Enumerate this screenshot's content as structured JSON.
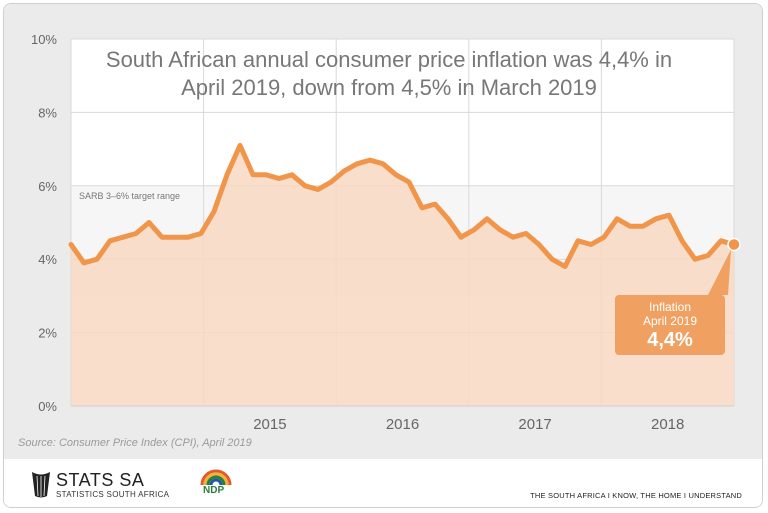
{
  "chart_data": {
    "type": "area",
    "title": "South African annual consumer price inflation was 4,4% in April 2019, down from 4,5% in March 2019",
    "ylim": [
      0,
      10
    ],
    "y_ticks": [
      "0%",
      "2%",
      "4%",
      "6%",
      "8%",
      "10%"
    ],
    "x_tick_labels": [
      "2015",
      "2016",
      "2017",
      "2018"
    ],
    "band": {
      "label": "SARB 3–6% target range",
      "from": 3,
      "to": 6
    },
    "grid": true,
    "series": [
      {
        "values": [
          4.4,
          3.9,
          4.0,
          4.5,
          4.6,
          4.7,
          5.0,
          4.6,
          4.6,
          4.6,
          4.7,
          5.3,
          6.3,
          7.1,
          6.3,
          6.3,
          6.2,
          6.3,
          6.0,
          5.9,
          6.1,
          6.4,
          6.6,
          6.7,
          6.6,
          6.3,
          6.1,
          5.4,
          5.5,
          5.1,
          4.6,
          4.8,
          5.1,
          4.8,
          4.6,
          4.7,
          4.4,
          4.0,
          3.8,
          4.5,
          4.4,
          4.6,
          5.1,
          4.9,
          4.9,
          5.1,
          5.2,
          4.5,
          4.0,
          4.1,
          4.5,
          4.4
        ]
      }
    ],
    "callout": {
      "line1": "Inflation",
      "line2": "April 2019",
      "value": "4,4%"
    },
    "source": "Source: Consumer Price Index (CPI), April 2019"
  },
  "colors": {
    "line": "#f0954a",
    "fill": "#f8d9c2",
    "band": "#f6f6f6",
    "callout": "#f0a060"
  },
  "footer": {
    "logo_name": "STATS SA",
    "logo_sub": "STATISTICS SOUTH AFRICA",
    "ndp_label": "NDP",
    "tagline": "THE SOUTH AFRICA I KNOW, THE HOME I UNDERSTAND"
  }
}
